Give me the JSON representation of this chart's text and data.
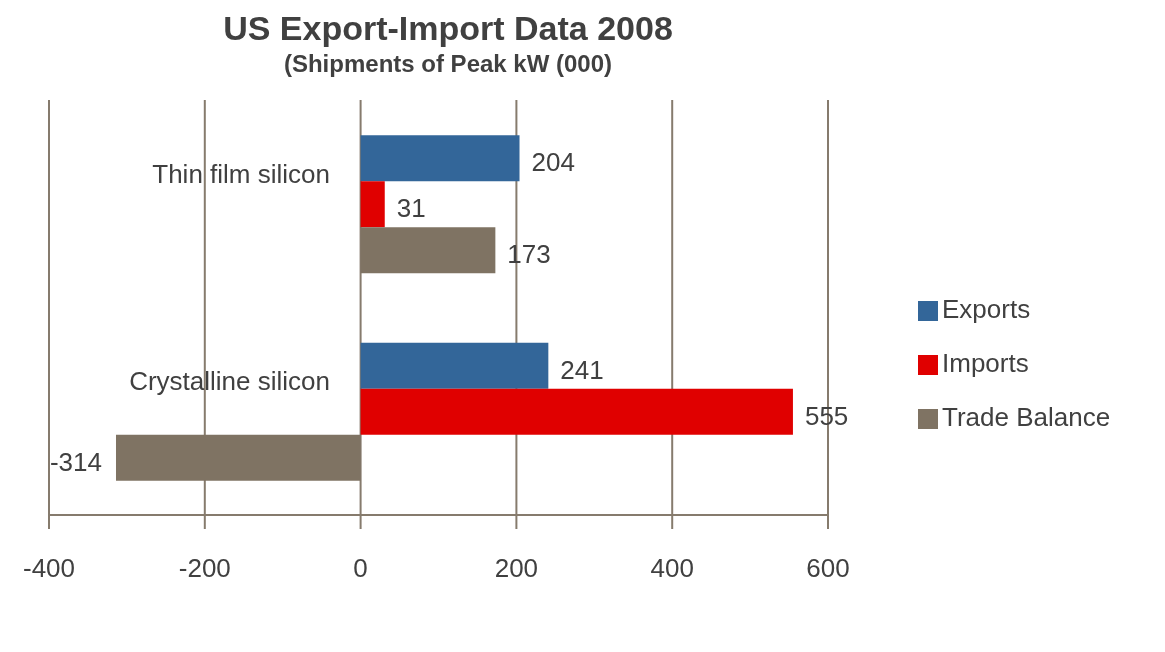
{
  "chart_data": {
    "type": "bar",
    "orientation": "horizontal",
    "title": "US Export-Import Data 2008",
    "subtitle": "(Shipments of Peak kW (000)",
    "categories": [
      "Thin film silicon",
      "Crystalline silicon"
    ],
    "series": [
      {
        "name": "Exports",
        "color": "#336699",
        "values": [
          204,
          241
        ]
      },
      {
        "name": "Imports",
        "color": "#e00000",
        "values": [
          31,
          555
        ]
      },
      {
        "name": "Trade Balance",
        "color": "#7f7363",
        "values": [
          173,
          -314
        ]
      }
    ],
    "xlim": [
      -400,
      600
    ],
    "xticks": [
      -400,
      -200,
      0,
      200,
      400,
      600
    ],
    "grid": "x",
    "legend": "right",
    "data_labels": true
  }
}
